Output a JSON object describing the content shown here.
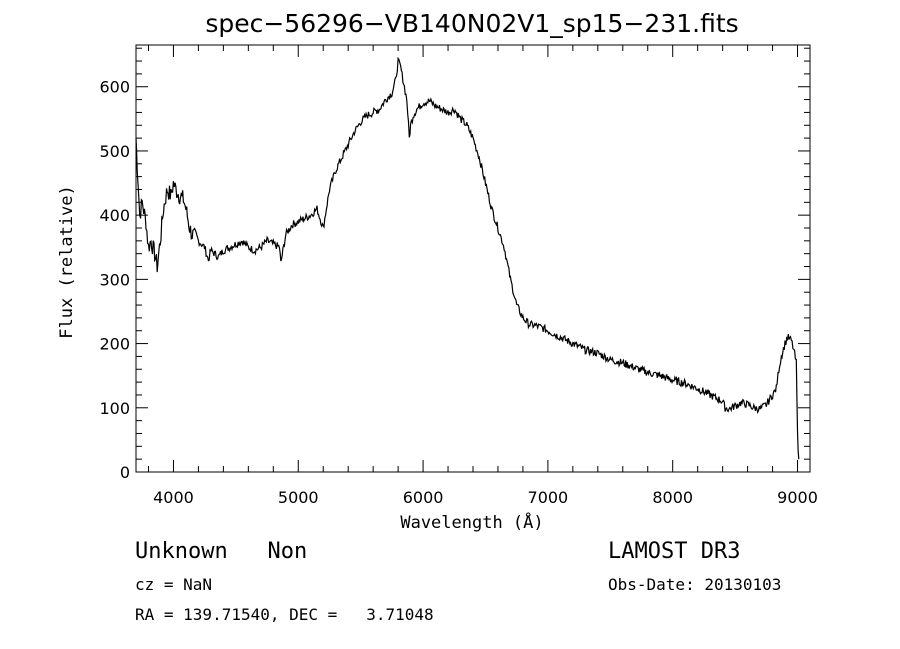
{
  "chart_data": {
    "type": "line",
    "title": "spec−56296−VB140N02V1_sp15−231.fits",
    "xlabel": "Wavelength (Å)",
    "ylabel": "Flux (relative)",
    "xlim": [
      3700,
      9100
    ],
    "ylim": [
      0,
      665
    ],
    "xticks": [
      4000,
      5000,
      6000,
      7000,
      8000,
      9000
    ],
    "yticks": [
      0,
      100,
      200,
      300,
      400,
      500,
      600
    ],
    "grid": false,
    "series": [
      {
        "name": "flux",
        "x": [
          3700,
          3710,
          3730,
          3750,
          3780,
          3800,
          3820,
          3850,
          3870,
          3900,
          3920,
          3950,
          3980,
          4000,
          4020,
          4050,
          4080,
          4100,
          4130,
          4150,
          4200,
          4250,
          4280,
          4300,
          4330,
          4360,
          4400,
          4450,
          4500,
          4550,
          4600,
          4650,
          4700,
          4750,
          4800,
          4850,
          4860,
          4900,
          4950,
          5000,
          5050,
          5100,
          5150,
          5200,
          5250,
          5300,
          5350,
          5400,
          5450,
          5500,
          5550,
          5600,
          5650,
          5700,
          5750,
          5780,
          5800,
          5820,
          5850,
          5870,
          5890,
          5900,
          5920,
          5950,
          6000,
          6050,
          6100,
          6150,
          6200,
          6250,
          6300,
          6350,
          6400,
          6450,
          6500,
          6550,
          6600,
          6650,
          6700,
          6750,
          6800,
          6850,
          6900,
          6950,
          7000,
          7100,
          7200,
          7300,
          7400,
          7500,
          7600,
          7700,
          7800,
          7900,
          8000,
          8100,
          8200,
          8300,
          8400,
          8420,
          8450,
          8500,
          8550,
          8600,
          8650,
          8700,
          8750,
          8800,
          8830,
          8850,
          8870,
          8900,
          8920,
          8950,
          8970,
          8990,
          9000,
          9010
        ],
        "y": [
          520,
          480,
          400,
          420,
          390,
          350,
          360,
          340,
          320,
          370,
          410,
          440,
          430,
          450,
          440,
          430,
          425,
          410,
          380,
          370,
          360,
          350,
          330,
          345,
          340,
          335,
          345,
          350,
          355,
          360,
          350,
          345,
          350,
          360,
          355,
          350,
          325,
          370,
          385,
          390,
          395,
          400,
          410,
          380,
          440,
          470,
          490,
          510,
          530,
          545,
          555,
          560,
          565,
          580,
          590,
          610,
          640,
          630,
          600,
          580,
          520,
          540,
          555,
          565,
          575,
          578,
          570,
          565,
          560,
          565,
          550,
          540,
          520,
          490,
          450,
          410,
          380,
          350,
          300,
          260,
          240,
          230,
          228,
          225,
          220,
          210,
          200,
          190,
          185,
          175,
          170,
          162,
          155,
          150,
          143,
          138,
          130,
          120,
          110,
          100,
          98,
          103,
          108,
          105,
          100,
          98,
          105,
          120,
          130,
          160,
          180,
          200,
          210,
          205,
          190,
          170,
          60,
          20
        ]
      }
    ]
  },
  "info": {
    "line1_left": "Unknown   Non",
    "line1_right": "LAMOST DR3",
    "cz": "cz = NaN",
    "obs_date": "Obs-Date: 20130103",
    "radec": "RA = 139.71540, DEC =   3.71048"
  }
}
